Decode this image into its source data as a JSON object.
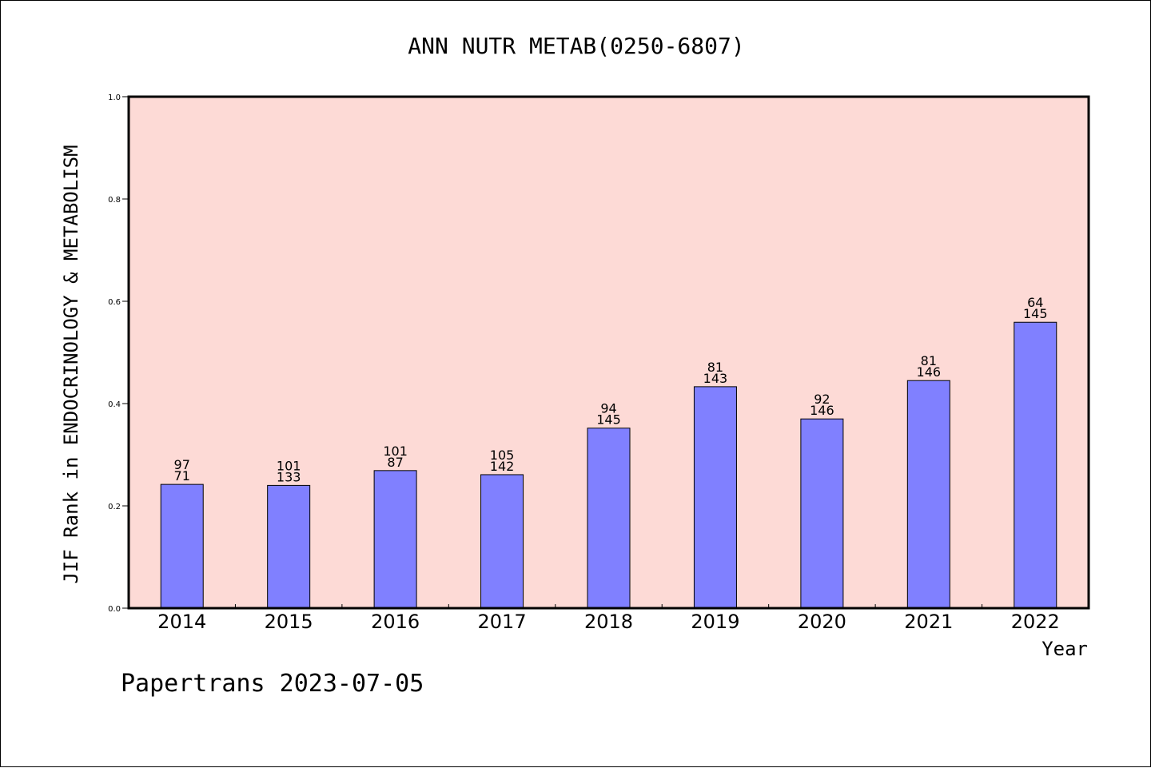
{
  "colors": {
    "plot_background": "#fddad6",
    "bar_fill": "#8080ff",
    "bar_stroke": "#000000"
  },
  "credit": "Papertrans 2023-07-05",
  "chart_data": {
    "type": "bar",
    "title": "ANN NUTR METAB(0250-6807)",
    "xlabel": "Year",
    "ylabel": "JIF Rank in ENDOCRINOLOGY & METABOLISM",
    "ylim": [
      0,
      1.0
    ],
    "yticks": [
      "0.0",
      "0.2",
      "0.4",
      "0.6",
      "0.8",
      "1.0"
    ],
    "grid": false,
    "categories": [
      "2014",
      "2015",
      "2016",
      "2017",
      "2018",
      "2019",
      "2020",
      "2021",
      "2022"
    ],
    "values": [
      0.242,
      0.24,
      0.269,
      0.261,
      0.352,
      0.433,
      0.37,
      0.445,
      0.559
    ],
    "labels_top": [
      "97",
      "101",
      "101",
      "105",
      "94",
      "81",
      "92",
      "81",
      "64"
    ],
    "labels_bottom": [
      "71",
      "133",
      "87",
      "142",
      "145",
      "143",
      "146",
      "146",
      "145"
    ]
  }
}
